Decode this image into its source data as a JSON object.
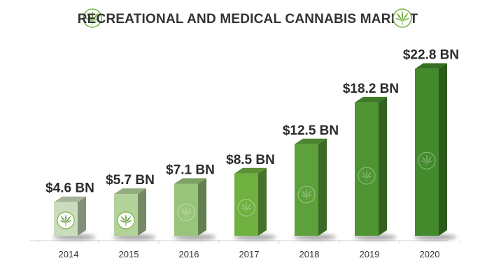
{
  "chart_data": {
    "type": "bar",
    "title": "RECREATIONAL AND MEDICAL CANNABIS MARKET",
    "categories": [
      "2014",
      "2015",
      "2016",
      "2017",
      "2018",
      "2019",
      "2020"
    ],
    "values": [
      4.6,
      5.7,
      7.1,
      8.5,
      12.5,
      18.2,
      22.8
    ],
    "data_labels": [
      "$4.6 BN",
      "$5.7 BN",
      "$7.1 BN",
      "$8.5 BN",
      "$12.5 BN",
      "$18.2 BN",
      "$22.8 BN"
    ],
    "ylim": [
      0,
      24
    ],
    "grid": false,
    "legend": "none",
    "colors": {
      "fronts": [
        "#c9dcbb",
        "#b3d29a",
        "#98c47a",
        "#6fb040",
        "#5da13a",
        "#4e9532",
        "#428a2b"
      ],
      "title_icon": "#7ab648",
      "text": "#2b2b2b"
    },
    "icons": {
      "title_left": "cannabis-leaf-icon",
      "title_right": "cannabis-leaf-icon",
      "bar": "cannabis-leaf-icon"
    }
  }
}
